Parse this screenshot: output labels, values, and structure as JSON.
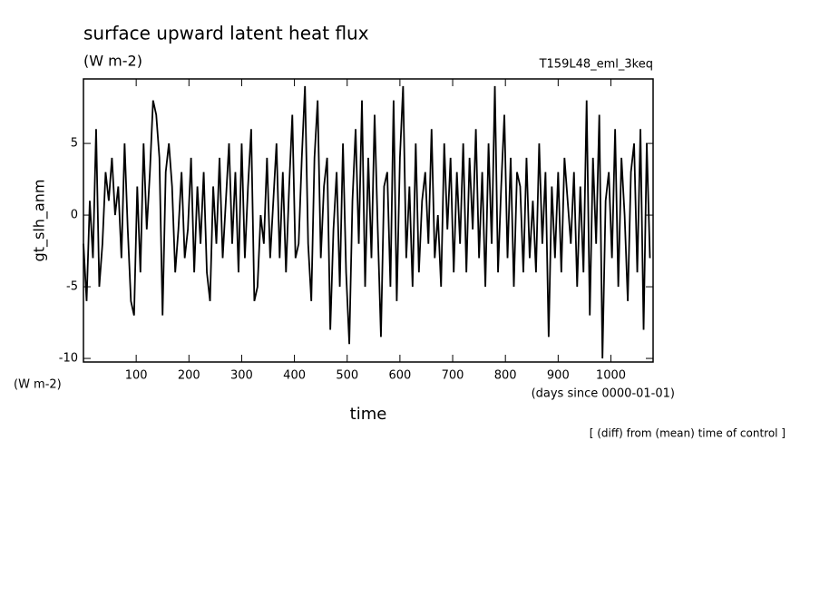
{
  "chart_data": {
    "type": "line",
    "title": "surface upward latent heat flux",
    "subtitle": "(W m-2)",
    "run_label": "T159L48_eml_3keq",
    "y_label": "gt_slh_anm",
    "y_unit": "(W m-2)",
    "x_label": "time",
    "x_unit": "(days since 0000-01-01)",
    "note": "[ (diff) from (mean) time of control ]",
    "color": "#000000",
    "xlim": [
      0,
      1080
    ],
    "ylim": [
      -10.25,
      9.5
    ],
    "xticks": [
      100,
      200,
      300,
      400,
      500,
      600,
      700,
      800,
      900,
      1000
    ],
    "yticks": [
      -10,
      -5,
      0,
      5
    ],
    "x": [
      0,
      6,
      12,
      18,
      24,
      30,
      36,
      42,
      48,
      54,
      60,
      66,
      72,
      78,
      84,
      90,
      96,
      102,
      108,
      114,
      120,
      126,
      132,
      138,
      144,
      150,
      156,
      162,
      168,
      174,
      180,
      186,
      192,
      198,
      204,
      210,
      216,
      222,
      228,
      234,
      240,
      246,
      252,
      258,
      264,
      270,
      276,
      282,
      288,
      294,
      300,
      306,
      312,
      318,
      324,
      330,
      336,
      342,
      348,
      354,
      360,
      366,
      372,
      378,
      384,
      390,
      396,
      402,
      408,
      414,
      420,
      426,
      432,
      438,
      444,
      450,
      456,
      462,
      468,
      474,
      480,
      486,
      492,
      498,
      504,
      510,
      516,
      522,
      528,
      534,
      540,
      546,
      552,
      558,
      564,
      570,
      576,
      582,
      588,
      594,
      600,
      606,
      612,
      618,
      624,
      630,
      636,
      642,
      648,
      654,
      660,
      666,
      672,
      678,
      684,
      690,
      696,
      702,
      708,
      714,
      720,
      726,
      732,
      738,
      744,
      750,
      756,
      762,
      768,
      774,
      780,
      786,
      792,
      798,
      804,
      810,
      816,
      822,
      828,
      834,
      840,
      846,
      852,
      858,
      864,
      870,
      876,
      882,
      888,
      894,
      900,
      906,
      912,
      918,
      924,
      930,
      936,
      942,
      948,
      954,
      960,
      966,
      972,
      978,
      984,
      990,
      996,
      1002,
      1008,
      1014,
      1020,
      1026,
      1032,
      1038,
      1044,
      1050,
      1056,
      1062,
      1068,
      1074
    ],
    "values": [
      -2,
      -6,
      1,
      -3,
      6,
      -5,
      -2,
      3,
      1,
      4,
      0,
      2,
      -3,
      5,
      -1,
      -6,
      -7,
      2,
      -4,
      5,
      -1,
      3,
      8,
      7,
      4,
      -7,
      3,
      5,
      2,
      -4,
      -1,
      3,
      -3,
      -1,
      4,
      -4,
      2,
      -2,
      3,
      -4,
      -6,
      2,
      -2,
      4,
      -3,
      1,
      5,
      -2,
      3,
      -4,
      5,
      -3,
      2,
      6,
      -6,
      -5,
      0,
      -2,
      4,
      -3,
      1,
      5,
      -3,
      3,
      -4,
      2,
      7,
      -3,
      -2,
      4,
      9,
      -2,
      -6,
      4,
      8,
      -3,
      2,
      4,
      -8,
      -1,
      3,
      -5,
      5,
      -4,
      -9,
      1,
      6,
      -2,
      8,
      -5,
      4,
      -3,
      7,
      -1,
      -8.5,
      2,
      3,
      -5,
      8,
      -6,
      4,
      9,
      -3,
      2,
      -5,
      5,
      -4,
      1,
      3,
      -2,
      6,
      -3,
      0,
      -5,
      5,
      -1,
      4,
      -4,
      3,
      -2,
      5,
      -4,
      4,
      -1,
      6,
      -3,
      3,
      -5,
      5,
      -2,
      9,
      -4,
      2,
      7,
      -3,
      4,
      -5,
      3,
      2,
      -4,
      4,
      -3,
      1,
      -4,
      5,
      -2,
      3,
      -8.5,
      2,
      -3,
      3,
      -4,
      4,
      1,
      -2,
      3,
      -5,
      2,
      -4,
      8,
      -7,
      4,
      -2,
      7,
      -10,
      1,
      3,
      -3,
      6,
      -5,
      4,
      0,
      -6,
      3,
      5,
      -4,
      6,
      -8,
      5,
      -3
    ]
  }
}
